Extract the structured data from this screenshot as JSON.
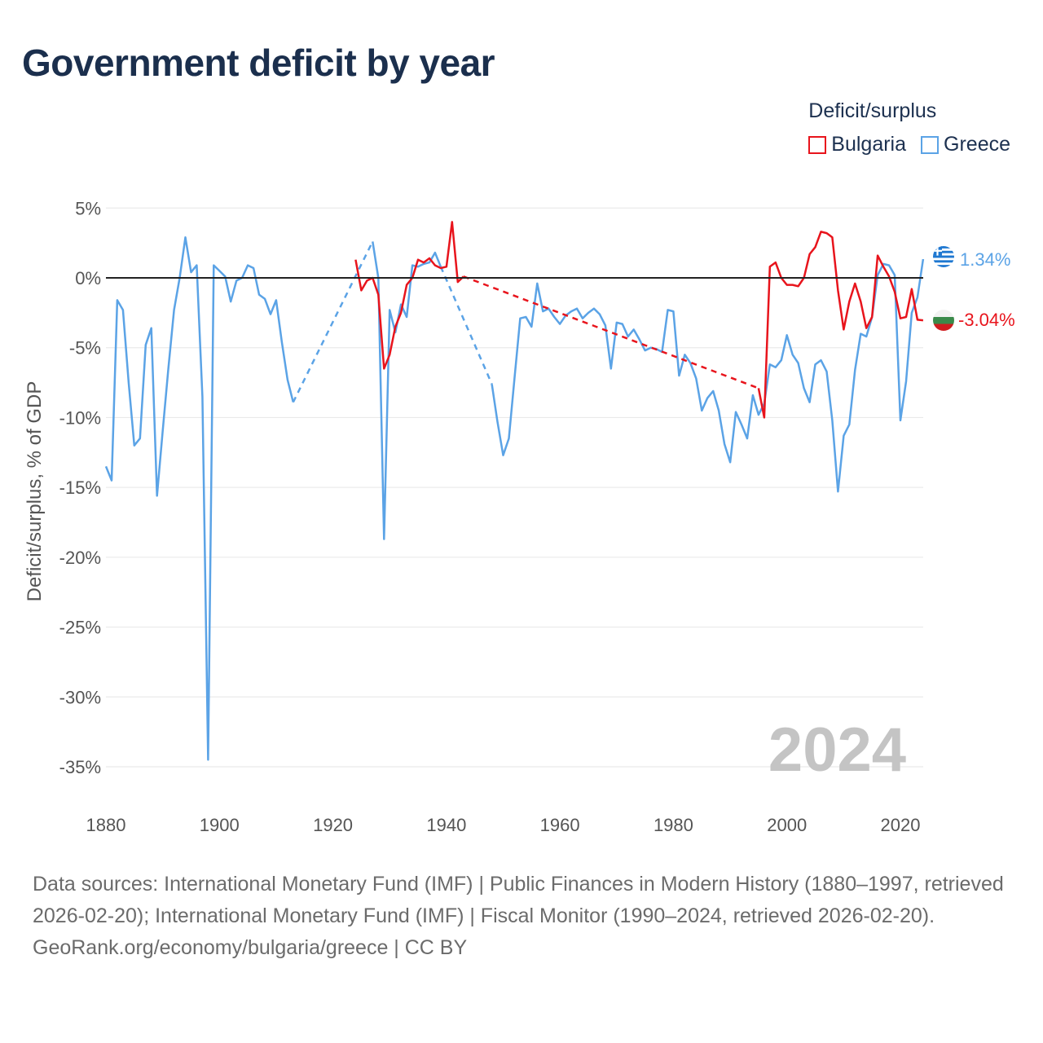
{
  "chart_data": {
    "type": "line",
    "title": "Government deficit by year",
    "ylabel": "Deficit/surplus, % of GDP",
    "xlabel": "",
    "xlim": [
      1880,
      2024
    ],
    "ylim": [
      -37,
      5
    ],
    "x_ticks": [
      {
        "value": 1880,
        "label": "1880"
      },
      {
        "value": 1900,
        "label": "1900"
      },
      {
        "value": 1920,
        "label": "1920"
      },
      {
        "value": 1940,
        "label": "1940"
      },
      {
        "value": 1960,
        "label": "1960"
      },
      {
        "value": 1980,
        "label": "1980"
      },
      {
        "value": 2000,
        "label": "2000"
      },
      {
        "value": 2020,
        "label": "2020"
      }
    ],
    "y_ticks": [
      {
        "value": 5,
        "label": "5%"
      },
      {
        "value": 0,
        "label": "0%"
      },
      {
        "value": -5,
        "label": "-5%"
      },
      {
        "value": -10,
        "label": "-10%"
      },
      {
        "value": -15,
        "label": "-15%"
      },
      {
        "value": -20,
        "label": "-20%"
      },
      {
        "value": -25,
        "label": "-25%"
      },
      {
        "value": -30,
        "label": "-30%"
      },
      {
        "value": -35,
        "label": "-35%"
      }
    ],
    "year_watermark": "2024",
    "legend_title": "Deficit/surplus",
    "series": [
      {
        "name": "Bulgaria",
        "color": "#e8141c",
        "end_label": "-3.04%",
        "flag": "bulgaria-flag-icon",
        "segments": [
          [
            [
              1924,
              1.3
            ],
            [
              1925,
              -0.9
            ],
            [
              1926,
              -0.2
            ],
            [
              1927,
              0
            ],
            [
              1928,
              -1.2
            ],
            [
              1929,
              -6.5
            ],
            [
              1930,
              -5.5
            ],
            [
              1931,
              -3.5
            ],
            [
              1932,
              -2.5
            ],
            [
              1933,
              -0.5
            ],
            [
              1934,
              0
            ],
            [
              1935,
              1.3
            ],
            [
              1936,
              1.1
            ],
            [
              1937,
              1.4
            ],
            [
              1938,
              0.9
            ],
            [
              1939,
              0.7
            ],
            [
              1940,
              0.8
            ],
            [
              1941,
              4
            ],
            [
              1942,
              -0.3
            ],
            [
              1943,
              0.1
            ]
          ],
          [
            [
              1995,
              -7.9
            ],
            [
              1996,
              -10
            ],
            [
              1997,
              0.8
            ],
            [
              1998,
              1.1
            ],
            [
              1999,
              0
            ],
            [
              2000,
              -0.5
            ],
            [
              2001,
              -0.5
            ],
            [
              2002,
              -0.6
            ],
            [
              2003,
              0
            ],
            [
              2004,
              1.7
            ],
            [
              2005,
              2.2
            ],
            [
              2006,
              3.3
            ],
            [
              2007,
              3.2
            ],
            [
              2008,
              2.9
            ],
            [
              2009,
              -0.9
            ],
            [
              2010,
              -3.7
            ],
            [
              2011,
              -1.7
            ],
            [
              2012,
              -0.4
            ],
            [
              2013,
              -1.7
            ],
            [
              2014,
              -3.6
            ],
            [
              2015,
              -2.8
            ],
            [
              2016,
              1.6
            ],
            [
              2017,
              0.8
            ],
            [
              2018,
              0.1
            ],
            [
              2019,
              -1
            ],
            [
              2020,
              -2.9
            ],
            [
              2021,
              -2.8
            ],
            [
              2022,
              -0.8
            ],
            [
              2023,
              -3
            ],
            [
              2024,
              -3.04
            ]
          ]
        ],
        "gaps": [
          [
            [
              1943,
              0.1
            ],
            [
              1995,
              -7.9
            ]
          ]
        ]
      },
      {
        "name": "Greece",
        "color": "#5ba3e6",
        "end_label": "1.34%",
        "flag": "greece-flag-icon",
        "segments": [
          [
            [
              1880,
              -13.5
            ],
            [
              1881,
              -14.5
            ],
            [
              1882,
              -1.6
            ],
            [
              1883,
              -2.3
            ],
            [
              1884,
              -7.5
            ],
            [
              1885,
              -12
            ],
            [
              1886,
              -11.5
            ],
            [
              1887,
              -4.8
            ],
            [
              1888,
              -3.6
            ],
            [
              1889,
              -15.6
            ],
            [
              1890,
              -11
            ],
            [
              1891,
              -6.5
            ],
            [
              1892,
              -2.3
            ],
            [
              1893,
              0
            ],
            [
              1894,
              2.9
            ],
            [
              1895,
              0.4
            ],
            [
              1896,
              0.9
            ],
            [
              1897,
              -8.5
            ],
            [
              1898,
              -34.5
            ],
            [
              1899,
              0.9
            ],
            [
              1900,
              0.5
            ],
            [
              1901,
              0.1
            ],
            [
              1902,
              -1.7
            ],
            [
              1903,
              -0.2
            ],
            [
              1904,
              0
            ],
            [
              1905,
              0.9
            ],
            [
              1906,
              0.7
            ],
            [
              1907,
              -1.2
            ],
            [
              1908,
              -1.5
            ],
            [
              1909,
              -2.6
            ],
            [
              1910,
              -1.6
            ],
            [
              1911,
              -4.6
            ],
            [
              1912,
              -7.3
            ],
            [
              1913,
              -8.9
            ]
          ],
          [
            [
              1927,
              2.6
            ],
            [
              1928,
              0
            ],
            [
              1929,
              -18.7
            ],
            [
              1930,
              -2.3
            ],
            [
              1931,
              -3.9
            ],
            [
              1932,
              -1.9
            ],
            [
              1933,
              -2.8
            ],
            [
              1934,
              0.9
            ],
            [
              1935,
              0.8
            ],
            [
              1936,
              1
            ],
            [
              1937,
              1.1
            ],
            [
              1938,
              1.8
            ],
            [
              1939,
              0.8
            ]
          ],
          [
            [
              1948,
              -7.6
            ],
            [
              1949,
              -10.3
            ],
            [
              1950,
              -12.7
            ],
            [
              1951,
              -11.5
            ],
            [
              1952,
              -7.2
            ],
            [
              1953,
              -2.9
            ],
            [
              1954,
              -2.8
            ],
            [
              1955,
              -3.5
            ],
            [
              1956,
              -0.4
            ],
            [
              1957,
              -2.4
            ],
            [
              1958,
              -2.2
            ],
            [
              1959,
              -2.8
            ],
            [
              1960,
              -3.3
            ],
            [
              1961,
              -2.7
            ],
            [
              1962,
              -2.4
            ],
            [
              1963,
              -2.2
            ],
            [
              1964,
              -2.9
            ],
            [
              1965,
              -2.5
            ],
            [
              1966,
              -2.2
            ],
            [
              1967,
              -2.6
            ],
            [
              1968,
              -3.4
            ],
            [
              1969,
              -6.5
            ],
            [
              1970,
              -3.2
            ],
            [
              1971,
              -3.3
            ],
            [
              1972,
              -4.2
            ],
            [
              1973,
              -3.7
            ],
            [
              1974,
              -4.4
            ],
            [
              1975,
              -5.2
            ],
            [
              1976,
              -5
            ],
            [
              1977,
              -5.1
            ],
            [
              1978,
              -5.3
            ],
            [
              1979,
              -2.3
            ],
            [
              1980,
              -2.4
            ],
            [
              1981,
              -7
            ],
            [
              1982,
              -5.5
            ],
            [
              1983,
              -6.1
            ],
            [
              1984,
              -7.2
            ],
            [
              1985,
              -9.5
            ],
            [
              1986,
              -8.6
            ],
            [
              1987,
              -8.1
            ],
            [
              1988,
              -9.5
            ],
            [
              1989,
              -11.9
            ],
            [
              1990,
              -13.2
            ],
            [
              1991,
              -9.6
            ],
            [
              1992,
              -10.5
            ],
            [
              1993,
              -11.5
            ],
            [
              1994,
              -8.4
            ],
            [
              1995,
              -9.8
            ],
            [
              1996,
              -9
            ],
            [
              1997,
              -6.2
            ],
            [
              1998,
              -6.4
            ],
            [
              1999,
              -5.9
            ],
            [
              2000,
              -4.1
            ],
            [
              2001,
              -5.5
            ],
            [
              2002,
              -6.1
            ],
            [
              2003,
              -7.9
            ],
            [
              2004,
              -8.9
            ],
            [
              2005,
              -6.2
            ],
            [
              2006,
              -5.9
            ],
            [
              2007,
              -6.7
            ],
            [
              2008,
              -10.2
            ],
            [
              2009,
              -15.3
            ],
            [
              2010,
              -11.3
            ],
            [
              2011,
              -10.5
            ],
            [
              2012,
              -6.6
            ],
            [
              2013,
              -4
            ],
            [
              2014,
              -4.2
            ],
            [
              2015,
              -2.8
            ],
            [
              2016,
              0.2
            ],
            [
              2017,
              1
            ],
            [
              2018,
              0.9
            ],
            [
              2019,
              0.2
            ],
            [
              2020,
              -10.2
            ],
            [
              2021,
              -7.4
            ],
            [
              2022,
              -2.5
            ],
            [
              2023,
              -1.4
            ],
            [
              2024,
              1.34
            ]
          ]
        ],
        "gaps": [
          [
            [
              1913,
              -8.9
            ],
            [
              1927,
              2.6
            ]
          ],
          [
            [
              1939,
              0.8
            ],
            [
              1948,
              -7.6
            ]
          ]
        ]
      }
    ]
  },
  "footer": {
    "sources": "Data sources: International Monetary Fund (IMF) | Public Finances in Modern History (1880–1997, retrieved 2026-02-20); International Monetary Fund (IMF) | Fiscal Monitor (1990–2024, retrieved 2026-02-20).",
    "attribution": "GeoRank.org/economy/bulgaria/greece | CC BY"
  }
}
